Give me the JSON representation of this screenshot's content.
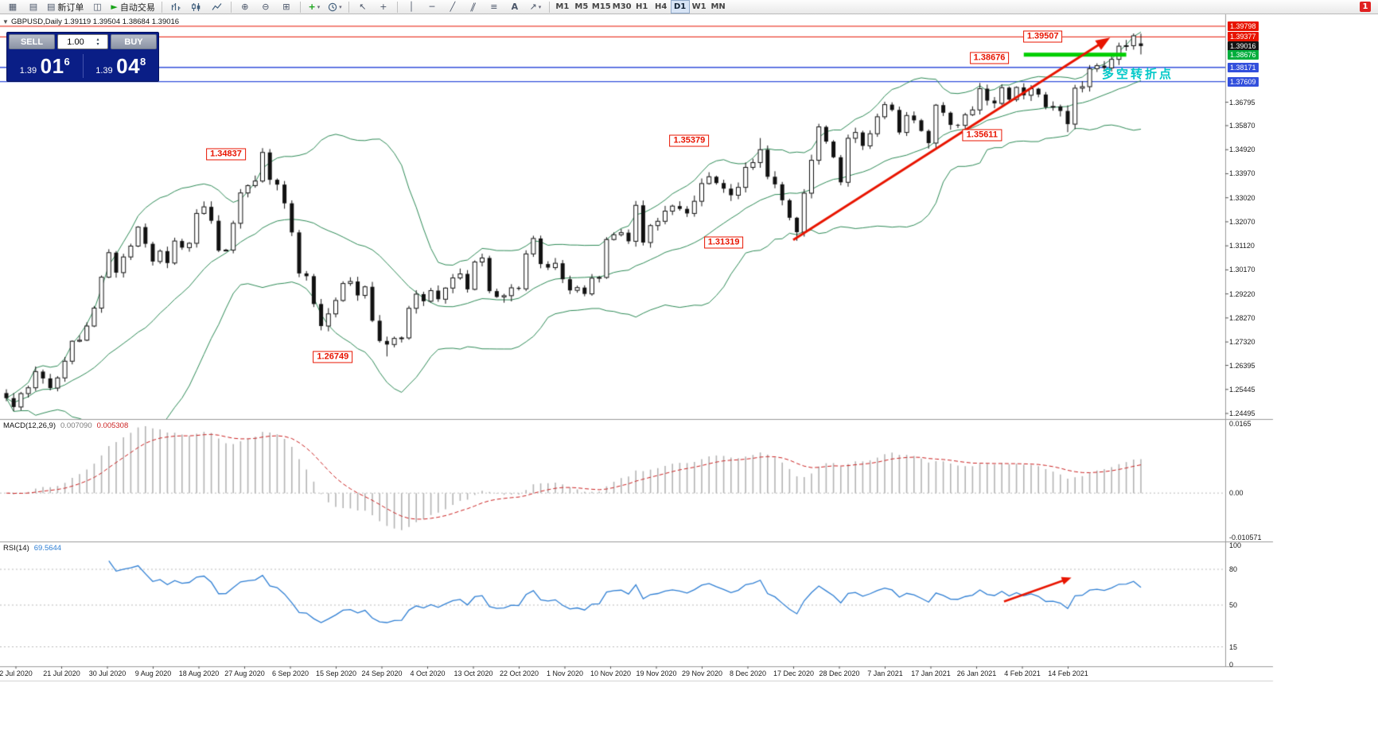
{
  "toolbar": {
    "items": [
      {
        "type": "icon",
        "name": "new-chart-icon",
        "glyph": "▦"
      },
      {
        "type": "icon",
        "name": "profiles-icon",
        "glyph": "▤"
      },
      {
        "type": "btn",
        "name": "new-order-button",
        "glyph": "▤",
        "label": "新订单"
      },
      {
        "type": "icon",
        "name": "market-watch-icon",
        "glyph": "◫"
      },
      {
        "type": "btn",
        "name": "autotrading-button",
        "glyph": "►",
        "glyph_color": "#18a318",
        "label": "自动交易"
      },
      {
        "type": "sep"
      },
      {
        "type": "svg",
        "name": "bar-chart-mode-icon",
        "kind": "bars"
      },
      {
        "type": "svg",
        "name": "candlestick-mode-icon",
        "kind": "candles"
      },
      {
        "type": "svg",
        "name": "line-chart-mode-icon",
        "kind": "line"
      },
      {
        "type": "sep"
      },
      {
        "type": "icon",
        "name": "zoom-in-icon",
        "glyph": "⊕"
      },
      {
        "type": "icon",
        "name": "zoom-out-icon",
        "glyph": "⊖"
      },
      {
        "type": "icon",
        "name": "tile-windows-icon",
        "glyph": "⊞"
      },
      {
        "type": "sep"
      },
      {
        "type": "icon",
        "name": "indicators-icon",
        "glyph": "+",
        "glyph_color": "#18a318",
        "bold": true,
        "dropdown": true
      },
      {
        "type": "svg",
        "name": "periods-icon",
        "kind": "clock",
        "dropdown": true
      },
      {
        "type": "sep"
      },
      {
        "type": "icon",
        "name": "cursor-icon",
        "glyph": "↖"
      },
      {
        "type": "icon",
        "name": "crosshair-icon",
        "glyph": "+"
      },
      {
        "type": "sep"
      },
      {
        "type": "icon",
        "name": "vertical-line-icon",
        "glyph": "│"
      },
      {
        "type": "icon",
        "name": "horizontal-line-icon",
        "glyph": "─"
      },
      {
        "type": "icon",
        "name": "trendline-icon",
        "glyph": "╱"
      },
      {
        "type": "icon",
        "name": "channel-icon",
        "glyph": "∥",
        "skew": true
      },
      {
        "type": "icon",
        "name": "fibonacci-icon",
        "glyph": "≡"
      },
      {
        "type": "icon",
        "name": "text-icon",
        "glyph": "A",
        "bold": true
      },
      {
        "type": "icon",
        "name": "arrow-tools-icon",
        "glyph": "↗",
        "dropdown": true
      },
      {
        "type": "sep"
      }
    ],
    "timeframes": [
      "M1",
      "M5",
      "M15",
      "M30",
      "H1",
      "H4",
      "D1",
      "W1",
      "MN"
    ],
    "active_timeframe": "D1",
    "notification_count": "1"
  },
  "chart": {
    "title": "GBPUSD,Daily  1.39119 1.39504 1.38684 1.39016",
    "symbol": "GBPUSD",
    "period": "Daily"
  },
  "one_click": {
    "sell_label": "SELL",
    "buy_label": "BUY",
    "volume": "1.00",
    "sell_price": {
      "big": "1.39",
      "mid": "01",
      "sup": "6"
    },
    "buy_price": {
      "big": "1.39",
      "mid": "04",
      "sup": "8"
    }
  },
  "price_axis": {
    "normal_labels": [
      "1.36795",
      "1.35870",
      "1.34920",
      "1.33970",
      "1.33020",
      "1.32070",
      "1.31120",
      "1.30170",
      "1.29220",
      "1.28270",
      "1.27320",
      "1.26395",
      "1.25445",
      "1.24495"
    ],
    "special_labels": [
      {
        "text": "1.39798",
        "price": 1.39798,
        "bg": "#e81400"
      },
      {
        "text": "1.39377",
        "price": 1.39377,
        "bg": "#e81400"
      },
      {
        "text": "1.39016",
        "price": 1.39016,
        "bg": "#141414"
      },
      {
        "text": "1.38676",
        "price": 1.38676,
        "bg": "#00ae3c"
      },
      {
        "text": "1.38171",
        "price": 1.38171,
        "bg": "#3350dc"
      },
      {
        "text": "1.37609",
        "price": 1.37609,
        "bg": "#3350dc"
      }
    ]
  },
  "macd": {
    "name": "MACD(12,26,9)",
    "main_value": "0.007090",
    "signal_value": "0.005308",
    "scale_labels": [
      "0.0165",
      "0.00",
      "-0.010571"
    ]
  },
  "rsi": {
    "name": "RSI(14)",
    "value": "69.5644",
    "scale_labels": [
      "100",
      "80",
      "50",
      "15",
      "0"
    ],
    "level_lines": [
      80,
      50,
      15
    ]
  },
  "dates": [
    "2 Jul 2020",
    "21 Jul 2020",
    "30 Jul 2020",
    "9 Aug 2020",
    "18 Aug 2020",
    "27 Aug 2020",
    "6 Sep 2020",
    "15 Sep 2020",
    "24 Sep 2020",
    "4 Oct 2020",
    "13 Oct 2020",
    "22 Oct 2020",
    "1 Nov 2020",
    "10 Nov 2020",
    "19 Nov 2020",
    "29 Nov 2020",
    "8 Dec 2020",
    "17 Dec 2020",
    "28 Dec 2020",
    "7 Jan 2021",
    "17 Jan 2021",
    "26 Jan 2021",
    "4 Feb 2021",
    "14 Feb 2021"
  ],
  "annotations": {
    "note": {
      "text": "多空转折点",
      "color": "#00c8c8"
    },
    "callouts": [
      {
        "text": "1.39507",
        "bar": 141.6,
        "price": 1.3938
      },
      {
        "text": "1.38676",
        "bar": 134.3,
        "price": 1.38541
      },
      {
        "text": "1.35611",
        "bar": 133.3,
        "price": 1.35493
      },
      {
        "text": "1.35379",
        "bar": 93.3,
        "price": 1.35272
      },
      {
        "text": "1.31319",
        "bar": 98.0,
        "price": 1.3125
      },
      {
        "text": "1.34837",
        "bar": 30.0,
        "price": 1.34738
      },
      {
        "text": "1.26749",
        "bar": 44.6,
        "price": 1.26724
      }
    ],
    "hlines": [
      {
        "price": 1.39798,
        "color": "#e81400",
        "width": 1
      },
      {
        "price": 1.39377,
        "color": "#e81400",
        "width": 1
      },
      {
        "price": 1.38171,
        "color": "#3350dc",
        "width": 1.4
      },
      {
        "price": 1.37609,
        "color": "#3350dc",
        "width": 1.4
      }
    ],
    "green_segment": {
      "price": 1.38676,
      "from_bar": 139,
      "to_bar": 153,
      "color": "#00ce00",
      "width": 5
    },
    "trend_arrow": {
      "from": {
        "bar": 107.5,
        "price": 1.3135
      },
      "to": {
        "bar": 150.8,
        "price": 1.3935
      },
      "color": "#e81400"
    },
    "rsi_arrow": {
      "from": {
        "bar": 136.3,
        "value": 53
      },
      "to": {
        "bar": 145.5,
        "value": 73
      },
      "color": "#e81400"
    }
  },
  "chart_data": {
    "type": "candlestick",
    "symbol": "GBPUSD",
    "timeframe": "Daily",
    "title": "GBPUSD Daily with Bollinger Bands, MACD(12,26,9), RSI(14)",
    "price_range": {
      "top": 1.39798,
      "bottom": 1.24495
    },
    "current_bar": {
      "open": 1.39119,
      "high": 1.39504,
      "low": 1.38684,
      "close": 1.39016
    },
    "closes": [
      1.251,
      1.2475,
      1.2528,
      1.2551,
      1.2615,
      1.2588,
      1.255,
      1.259,
      1.2656,
      1.2735,
      1.2739,
      1.2795,
      1.2866,
      1.2988,
      1.3085,
      1.3006,
      1.3068,
      1.3111,
      1.3186,
      1.312,
      1.305,
      1.3091,
      1.3044,
      1.3131,
      1.3105,
      1.3122,
      1.324,
      1.3266,
      1.3211,
      1.3093,
      1.3095,
      1.3201,
      1.3321,
      1.335,
      1.3368,
      1.3481,
      1.3373,
      1.3354,
      1.328,
      1.3165,
      1.3003,
      1.2992,
      1.2882,
      1.2795,
      1.2843,
      1.2896,
      1.2963,
      1.2971,
      1.2916,
      1.295,
      1.2816,
      1.2736,
      1.2722,
      1.2746,
      1.2748,
      1.2865,
      1.2921,
      1.2893,
      1.2935,
      1.2901,
      1.2945,
      1.2985,
      1.3001,
      1.294,
      1.3048,
      1.3064,
      1.2933,
      1.291,
      1.2915,
      1.2946,
      1.2942,
      1.308,
      1.3141,
      1.304,
      1.3026,
      1.3043,
      1.298,
      1.2936,
      1.2947,
      1.2922,
      1.2984,
      1.2987,
      1.3137,
      1.3156,
      1.3164,
      1.313,
      1.3272,
      1.3125,
      1.3192,
      1.3209,
      1.3249,
      1.3269,
      1.3258,
      1.324,
      1.3288,
      1.3358,
      1.3385,
      1.336,
      1.3338,
      1.3312,
      1.3343,
      1.3422,
      1.3441,
      1.3492,
      1.3385,
      1.3355,
      1.3292,
      1.3223,
      1.3166,
      1.332,
      1.345,
      1.3582,
      1.3524,
      1.3462,
      1.3363,
      1.3537,
      1.356,
      1.3507,
      1.3555,
      1.3622,
      1.367,
      1.3649,
      1.356,
      1.3627,
      1.3608,
      1.3566,
      1.3518,
      1.3668,
      1.3638,
      1.359,
      1.3588,
      1.363,
      1.3649,
      1.3733,
      1.3686,
      1.3675,
      1.3737,
      1.369,
      1.3738,
      1.3707,
      1.3733,
      1.371,
      1.366,
      1.3663,
      1.3645,
      1.3593,
      1.3735,
      1.3741,
      1.3812,
      1.3824,
      1.3815,
      1.3849,
      1.3901,
      1.3903,
      1.3942,
      1.39016
    ],
    "key_points": [
      {
        "bar": 35,
        "kind": "high",
        "price": 1.34837
      },
      {
        "bar": 52,
        "kind": "low",
        "price": 1.26749
      },
      {
        "bar": 103,
        "kind": "high",
        "price": 1.35379
      },
      {
        "bar": 108,
        "kind": "low",
        "price": 1.31319
      },
      {
        "bar": 145,
        "kind": "low",
        "price": 1.35611
      },
      {
        "bar": 154,
        "kind": "high",
        "price": 1.39507
      }
    ],
    "indicators": [
      {
        "name": "Bollinger Bands",
        "period": 20,
        "deviation": 2,
        "color": "#2e8b57"
      },
      {
        "name": "MACD",
        "params": "12,26,9",
        "current_main": 0.00709,
        "current_signal": 0.005308
      },
      {
        "name": "RSI",
        "period": 14,
        "current": 69.5644
      }
    ]
  },
  "colors": {
    "band_green": "#2e8b57",
    "arrow_red": "#e81400",
    "note_cyan": "#00c8c8",
    "panel_navy": "#0a1e86",
    "hline_blue": "#3350dc",
    "green_level": "#00ce00",
    "rsi_blue": "#2f7fd4",
    "macd_signal_red": "#cc2222",
    "macd_hist_silver": "#b4b4b4"
  }
}
